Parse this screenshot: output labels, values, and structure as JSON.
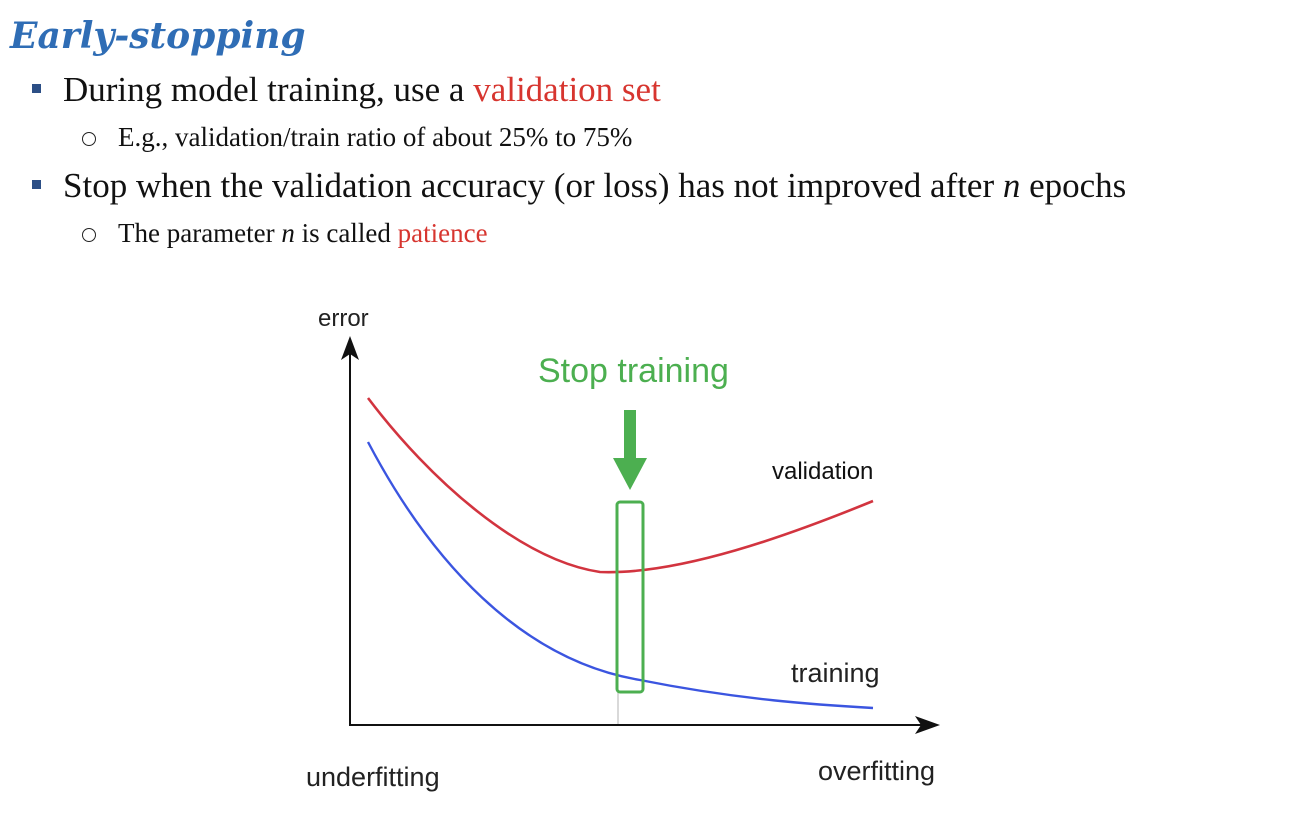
{
  "slide": {
    "title": "Early-stopping"
  },
  "bullets": {
    "b1": {
      "prefix": "During model training, use a ",
      "highlight": "validation set"
    },
    "b1_sub": {
      "text": "E.g., validation/train ratio of about 25% to 75%"
    },
    "b2": {
      "prefix": "Stop when the validation accuracy (or loss) has not improved after ",
      "variable": "n",
      "suffix": " epochs"
    },
    "b2_sub": {
      "prefix": "The parameter ",
      "variable": "n",
      "middle": " is called ",
      "highlight": "patience"
    }
  },
  "diagram": {
    "y_axis_label": "error",
    "x_left_label": "underfitting",
    "x_right_label": "overfitting",
    "stop_label": "Stop training",
    "validation_label": "validation",
    "training_label": "training",
    "colors": {
      "highlight": "#d7352f",
      "title": "#2f6db5",
      "validation_curve": "#d2343f",
      "training_curve": "#3b55e0",
      "stop": "#4caf50"
    }
  }
}
